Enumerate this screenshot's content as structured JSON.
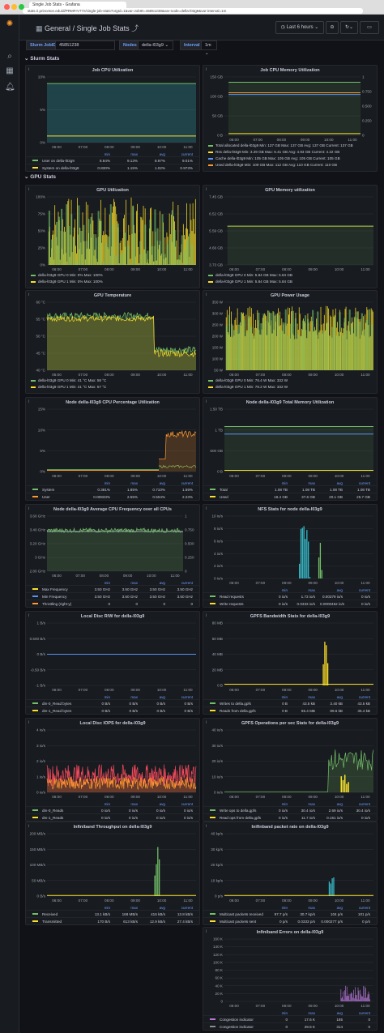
{
  "browser": {
    "tab_title": "Single Job Stats - Grafana",
    "url": "stats.ri.princeton.edu/d/PRMFrV77z/single-job-stats?orgId=1&var-JobID=45851238&var-node=della-l03g9&var-interval=1m"
  },
  "header": {
    "section": "General",
    "separator": "/",
    "title": "Single Job Stats",
    "time_range": "Last 6 hours"
  },
  "variables": [
    {
      "label": "Slurm JobID",
      "value": "45851238"
    },
    {
      "label": "Nodes",
      "value": "della-l03g9"
    },
    {
      "label": "Interval",
      "value": "1m"
    }
  ],
  "rows": [
    {
      "title": "Slurm Stats"
    },
    {
      "title": "GPU Stats"
    }
  ],
  "time_ticks": [
    "06:00",
    "07:00",
    "08:00",
    "09:00",
    "10:00",
    "11:00"
  ],
  "colors": {
    "green": "#73bf69",
    "yellow": "#fade2a",
    "blue": "#5794f2",
    "orange": "#ff9830",
    "red": "#f2495c",
    "purple": "#b877d9",
    "cyan": "#8ab8ff",
    "teal": "#37bac9"
  },
  "panels": [
    {
      "id": "p1",
      "title": "Job CPU Utilization",
      "y_ticks": [
        "10%",
        "5%",
        "0%"
      ],
      "legend_cols": [
        "min",
        "max",
        "avg",
        "current"
      ],
      "series": [
        {
          "name": "User on della-l03g9",
          "color": "#73bf69",
          "vals": [
            "8.84%",
            "9.13%",
            "8.97%",
            "9.01%"
          ]
        },
        {
          "name": "System on della-l03g9",
          "color": "#fade2a",
          "vals": [
            "0.830%",
            "1.15%",
            "1.02%",
            "0.973%"
          ]
        }
      ]
    },
    {
      "id": "p2",
      "title": "Job CPU Memory Utilization",
      "y_ticks": [
        "150 GB",
        "100 GB",
        "50 GB",
        "0 B"
      ],
      "y_ticks_right": [
        "1",
        "0.750",
        "0.500",
        "0.250",
        "0"
      ],
      "lines": [
        {
          "text": "Total allocated della-l03g9  Min: 137 GB  Max: 137 GB  Avg: 137 GB  Current: 137 GB",
          "color": "#73bf69"
        },
        {
          "text": "Rss della-l03g9  Min: 3.29 GB  Max: 6.41 GB  Avg: 4.93 GB  Current: 4.22 GB",
          "color": "#fade2a"
        },
        {
          "text": "Cache della-l03g9  Min: 105 GB  Max: 105 GB  Avg: 105 GB  Current: 105 GB",
          "color": "#5794f2"
        },
        {
          "text": "Used della-l03g9  Min: 109 GB  Max: 112 GB  Avg: 110 GB  Current: 110 GB",
          "color": "#ff9830"
        }
      ]
    },
    {
      "id": "p3",
      "title": "GPU Utilization",
      "y_ticks": [
        "100%",
        "75%",
        "50%",
        "25%",
        "0%"
      ],
      "lines": [
        {
          "text": "della-l03g9 GPU 0  Min: 0%  Max: 100%",
          "color": "#73bf69"
        },
        {
          "text": "della-l03g9 GPU 1  Min: 0%  Max: 100%",
          "color": "#fade2a"
        }
      ]
    },
    {
      "id": "p4",
      "title": "GPU Memory utilization",
      "y_ticks": [
        "7.45 GB",
        "6.52 GB",
        "5.59 GB",
        "4.66 GB",
        "3.73 GB"
      ],
      "lines": [
        {
          "text": "della-l03g9 GPU 0  Min: 5.84 GB  Max: 5.84 GB",
          "color": "#73bf69"
        },
        {
          "text": "della-l03g9 GPU 1  Min: 5.84 GB  Max: 5.84 GB",
          "color": "#fade2a"
        }
      ]
    },
    {
      "id": "p5",
      "title": "GPU Temperature",
      "y_ticks": [
        "60 °C",
        "55 °C",
        "50 °C",
        "45 °C",
        "40 °C"
      ],
      "lines": [
        {
          "text": "della-l03g9 GPU 0  Min: 41 °C  Max: 58 °C",
          "color": "#73bf69"
        },
        {
          "text": "della-l03g9 GPU 1  Min: 41 °C  Max: 57 °C",
          "color": "#fade2a"
        }
      ]
    },
    {
      "id": "p6",
      "title": "GPU Power Usage",
      "y_ticks": [
        "350 W",
        "300 W",
        "250 W",
        "200 W",
        "150 W",
        "100 W",
        "50 W"
      ],
      "lines": [
        {
          "text": "della-l03g9 GPU 0  Min: 76.4 W  Max: 332 W",
          "color": "#73bf69"
        },
        {
          "text": "della-l03g9 GPU 1  Min: 78.2 W  Max: 332 W",
          "color": "#fade2a"
        }
      ]
    },
    {
      "id": "p7",
      "title": "Node della-l03g9 CPU Percentage Utilization",
      "y_ticks": [
        "15%",
        "10%",
        "5%",
        "0%"
      ],
      "legend_cols": [
        "min",
        "max",
        "avg",
        "current"
      ],
      "series": [
        {
          "name": "System",
          "color": "#73bf69",
          "vals": [
            "0.381%",
            "1.85%",
            "0.710%",
            "1.59%"
          ]
        },
        {
          "name": "User",
          "color": "#ff9830",
          "vals": [
            "0.00833%",
            "2.55%",
            "0.504%",
            "2.23%"
          ]
        }
      ]
    },
    {
      "id": "p8",
      "title": "Node della-l03g9 Total Memory Utilization",
      "y_ticks": [
        "1.50 TB",
        "1 TB",
        "500 GB",
        "0 B"
      ],
      "legend_cols": [
        "min",
        "max",
        "avg",
        "current"
      ],
      "series": [
        {
          "name": "Total",
          "color": "#73bf69",
          "vals": [
            "1.08 TB",
            "1.08 TB",
            "1.08 TB",
            "1.08 TB"
          ]
        },
        {
          "name": "Used",
          "color": "#fade2a",
          "vals": [
            "16.4 GB",
            "37.6 GB",
            "20.1 GB",
            "25.7 GB"
          ]
        }
      ]
    },
    {
      "id": "p9",
      "title": "Node della-l03g9 Average CPU Frequency over all CPUs",
      "y_ticks": [
        "3.60 GHz",
        "3.40 GHz",
        "3.20 GHz",
        "3 GHz",
        "2.80 GHz"
      ],
      "y_ticks_right": [
        "1",
        "0.750",
        "0.500",
        "0.250",
        "0"
      ],
      "legend_cols": [
        "min",
        "max",
        "avg",
        "current"
      ],
      "series": [
        {
          "name": "Max Frequency",
          "color": "#fade2a",
          "vals": [
            "3.50 GHz",
            "3.50 GHz",
            "3.50 GHz",
            "3.50 GHz"
          ]
        },
        {
          "name": "Min Frequency",
          "color": "#5794f2",
          "vals": [
            "3.50 GHz",
            "3.50 GHz",
            "3.50 GHz",
            "3.50 GHz"
          ]
        },
        {
          "name": "Throttling (right-y)",
          "color": "#ff9830",
          "vals": [
            "0",
            "0",
            "0",
            "0"
          ]
        }
      ]
    },
    {
      "id": "p10",
      "title": "NFS Stats for node della-l03g9",
      "y_ticks": [
        "10 io/s",
        "8 io/s",
        "6 io/s",
        "4 io/s",
        "2 io/s",
        "0 io/s"
      ],
      "legend_cols": [
        "min",
        "max",
        "avg",
        "current"
      ],
      "series": [
        {
          "name": "Read requests",
          "color": "#73bf69",
          "vals": [
            "0 io/s",
            "1.73 io/s",
            "0.00379 io/s",
            "0 io/s"
          ]
        },
        {
          "name": "Write requests",
          "color": "#fade2a",
          "vals": [
            "0 io/s",
            "0.0333 io/s",
            "0.0000462 io/s",
            "0 io/s"
          ]
        }
      ]
    },
    {
      "id": "p11",
      "title": "Local Disc R/W for della-l03g9",
      "y_ticks": [
        "1 B/s",
        "0.500 B/s",
        "0 B/s",
        "-0.50 B/s",
        "-1 B/s"
      ],
      "legend_cols": [
        "min",
        "max",
        "avg",
        "current"
      ],
      "series": [
        {
          "name": "dm-0_Read bytes",
          "color": "#73bf69",
          "vals": [
            "0 B/s",
            "0 B/s",
            "0 B/s",
            "0 B/s"
          ]
        },
        {
          "name": "dm-1_Read bytes",
          "color": "#fade2a",
          "vals": [
            "0 B/s",
            "0 B/s",
            "0 B/s",
            "0 B/s"
          ]
        }
      ]
    },
    {
      "id": "p12",
      "title": "GPFS Bandwidth Stats for della-l03g9",
      "y_ticks": [
        "80 MB",
        "60 MB",
        "40 MB",
        "20 MB",
        "0 B"
      ],
      "legend_cols": [
        "min",
        "max",
        "avg",
        "current"
      ],
      "series": [
        {
          "name": "Writes to della.gpfs",
          "color": "#73bf69",
          "vals": [
            "0 B",
            "43.5 kB",
            "3.40 kB",
            "43.5 kB"
          ]
        },
        {
          "name": "Reads from della.gpfs",
          "color": "#fade2a",
          "vals": [
            "0 B",
            "65.4 MB",
            "89.6 kB",
            "35.4 kB"
          ]
        }
      ]
    },
    {
      "id": "p13",
      "title": "Local Disc IOPS for della-l03g9",
      "y_ticks": [
        "4 io/s",
        "3 io/s",
        "2 io/s",
        "1 io/s",
        "0 io/s"
      ],
      "legend_cols": [
        "min",
        "max",
        "avg",
        "current"
      ],
      "series": [
        {
          "name": "dm-0_Reads",
          "color": "#73bf69",
          "vals": [
            "0 io/s",
            "0 io/s",
            "0 io/s",
            "0 io/s"
          ]
        },
        {
          "name": "dm-1_Reads",
          "color": "#fade2a",
          "vals": [
            "0 io/s",
            "0 io/s",
            "0 io/s",
            "0 io/s"
          ]
        }
      ]
    },
    {
      "id": "p14",
      "title": "GPFS Operations per sec Stats for della-l03g9",
      "y_ticks": [
        "40 io/s",
        "30 io/s",
        "20 io/s",
        "10 io/s",
        "0 io/s"
      ],
      "legend_cols": [
        "min",
        "max",
        "avg",
        "current"
      ],
      "series": [
        {
          "name": "Write ops to della.gpfs",
          "color": "#73bf69",
          "vals": [
            "0 io/s",
            "30.4 io/s",
            "2.69 io/s",
            "30.4 io/s"
          ]
        },
        {
          "name": "Read ops from della.gpfs",
          "color": "#fade2a",
          "vals": [
            "0 io/s",
            "11.7 io/s",
            "0.151 io/s",
            "0 io/s"
          ]
        }
      ]
    },
    {
      "id": "p15",
      "title": "Infiniband Throughput on della-l03g9",
      "y_ticks": [
        "200 MB/s",
        "150 MB/s",
        "100 MB/s",
        "50 MB/s",
        "0 B/s"
      ],
      "legend_cols": [
        "min",
        "max",
        "avg",
        "current"
      ],
      "series": [
        {
          "name": "Received",
          "color": "#73bf69",
          "vals": [
            "13.1 kB/s",
            "168 MB/s",
            "416 kB/s",
            "13.8 kB/s"
          ]
        },
        {
          "name": "Transmitted",
          "color": "#fade2a",
          "vals": [
            "170 B/s",
            "613 kB/s",
            "12.9 kB/s",
            "27.4 kB/s"
          ]
        }
      ]
    },
    {
      "id": "p16",
      "title": "Inifinband packet rate on della-l03g9",
      "y_ticks": [
        "40 kp/s",
        "30 kp/s",
        "20 kp/s",
        "10 kp/s",
        "0 p/s"
      ],
      "legend_cols": [
        "min",
        "max",
        "avg",
        "current"
      ],
      "series": [
        {
          "name": "Multicast packets received",
          "color": "#73bf69",
          "vals": [
            "97.7 p/s",
            "30.7 kp/s",
            "104 p/s",
            "101 p/s"
          ]
        },
        {
          "name": "Multicast packets sent",
          "color": "#fade2a",
          "vals": [
            "0 p/s",
            "0.0333 p/s",
            "0.000277 p/s",
            "0 p/s"
          ]
        }
      ]
    },
    {
      "id": "p17",
      "title": "Infiniband Errors on della-l03g9",
      "y_ticks": [
        "160 K",
        "140 K",
        "120 K",
        "100 K",
        "80 K",
        "60 K",
        "40 K",
        "20 K",
        "0"
      ],
      "legend_cols": [
        "min",
        "max",
        "avg",
        "current"
      ],
      "series": [
        {
          "name": "Congestion indicator",
          "color": "#b877d9",
          "vals": [
            "0",
            "17.6 K",
            "185",
            "0"
          ]
        },
        {
          "name": "Congestion indicator",
          "color": "#8e8e8e",
          "vals": [
            "0",
            "29.6 K",
            "314",
            "0"
          ]
        }
      ]
    }
  ]
}
